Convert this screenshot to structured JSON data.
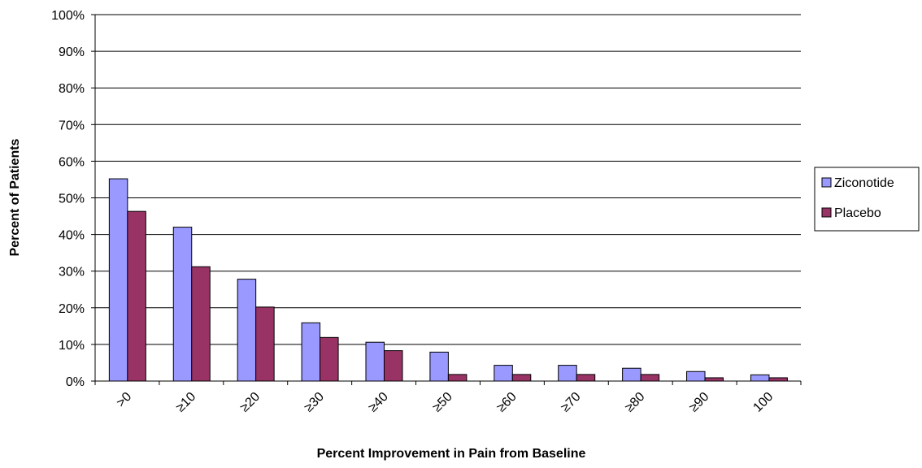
{
  "chart_data": {
    "type": "bar",
    "title": "",
    "xlabel": "Percent Improvement in Pain from Baseline",
    "ylabel": "Percent of Patients",
    "categories": [
      ">0",
      "≥10",
      "≥20",
      "≥30",
      "≥40",
      "≥50",
      "≥60",
      "≥70",
      "≥80",
      "≥90",
      "100"
    ],
    "series": [
      {
        "name": "Ziconotide",
        "color": "#9999FF",
        "values": [
          55.2,
          42.0,
          27.8,
          15.9,
          10.6,
          7.9,
          4.3,
          4.3,
          3.5,
          2.6,
          1.7
        ]
      },
      {
        "name": "Placebo",
        "color": "#993366",
        "values": [
          46.3,
          31.2,
          20.2,
          11.9,
          8.3,
          1.8,
          1.8,
          1.8,
          1.8,
          0.9,
          0.9
        ]
      }
    ],
    "ylim": [
      0,
      100
    ],
    "ytick_labels": [
      "0%",
      "10%",
      "20%",
      "30%",
      "40%",
      "50%",
      "60%",
      "70%",
      "80%",
      "90%",
      "100%"
    ],
    "grid": true,
    "legend_position": "right"
  }
}
